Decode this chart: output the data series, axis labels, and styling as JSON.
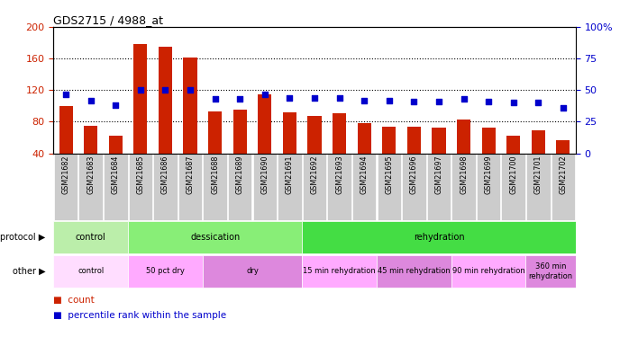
{
  "title": "GDS2715 / 4988_at",
  "samples": [
    "GSM21682",
    "GSM21683",
    "GSM21684",
    "GSM21685",
    "GSM21686",
    "GSM21687",
    "GSM21688",
    "GSM21689",
    "GSM21690",
    "GSM21691",
    "GSM21692",
    "GSM21693",
    "GSM21694",
    "GSM21695",
    "GSM21696",
    "GSM21697",
    "GSM21698",
    "GSM21699",
    "GSM21700",
    "GSM21701",
    "GSM21702"
  ],
  "counts": [
    100,
    75,
    62,
    178,
    175,
    161,
    93,
    95,
    115,
    92,
    87,
    91,
    78,
    74,
    74,
    73,
    83,
    72,
    62,
    69,
    57
  ],
  "percentiles": [
    47,
    42,
    38,
    50,
    50,
    50,
    43,
    43,
    47,
    44,
    44,
    44,
    42,
    42,
    41,
    41,
    43,
    41,
    40,
    40,
    36
  ],
  "ylim_left": [
    40,
    200
  ],
  "ylim_right": [
    0,
    100
  ],
  "yticks_left": [
    40,
    80,
    120,
    160,
    200
  ],
  "yticks_right": [
    0,
    25,
    50,
    75,
    100
  ],
  "bar_color": "#cc2200",
  "dot_color": "#0000cc",
  "protocol_groups": [
    {
      "label": "control",
      "start": 0,
      "end": 2,
      "color": "#bbeeaa"
    },
    {
      "label": "dessication",
      "start": 3,
      "end": 9,
      "color": "#88ee77"
    },
    {
      "label": "rehydration",
      "start": 10,
      "end": 20,
      "color": "#44dd44"
    }
  ],
  "other_groups": [
    {
      "label": "control",
      "start": 0,
      "end": 2,
      "color": "#ffddff"
    },
    {
      "label": "50 pct dry",
      "start": 3,
      "end": 5,
      "color": "#ffaaff"
    },
    {
      "label": "dry",
      "start": 6,
      "end": 9,
      "color": "#dd88dd"
    },
    {
      "label": "15 min rehydration",
      "start": 10,
      "end": 12,
      "color": "#ffaaff"
    },
    {
      "label": "45 min rehydration",
      "start": 13,
      "end": 15,
      "color": "#dd88dd"
    },
    {
      "label": "90 min rehydration",
      "start": 16,
      "end": 18,
      "color": "#ffaaff"
    },
    {
      "label": "360 min\nrehydration",
      "start": 19,
      "end": 20,
      "color": "#dd88dd"
    }
  ],
  "tick_bg_color": "#cccccc",
  "bg_color": "#ffffff",
  "legend_count_label": "count",
  "legend_pct_label": "percentile rank within the sample",
  "grid_dotted_at": [
    80,
    120,
    160
  ]
}
